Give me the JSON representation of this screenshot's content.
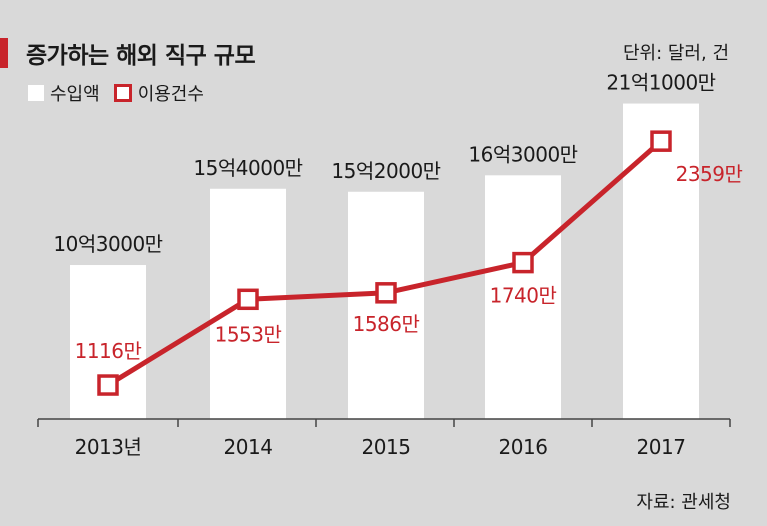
{
  "header": {
    "title": "증가하는 해외 직구 규모",
    "unit": "단위: 달러, 건"
  },
  "legend": {
    "amount_label": "수입액",
    "count_label": "이용건수"
  },
  "source": "자료: 관세청",
  "colors": {
    "accent": "#c8242b",
    "bar": "#ffffff",
    "background": "#d9d9d9"
  },
  "chart_data": {
    "type": "bar",
    "categories": [
      "2013년",
      "2014",
      "2015",
      "2016",
      "2017"
    ],
    "series": [
      {
        "name": "수입액",
        "type": "bar",
        "values": [
          1030000000,
          1540000000,
          1520000000,
          1630000000,
          2110000000
        ],
        "labels": [
          "10억3000만",
          "15억4000만",
          "15억2000만",
          "16억3000만",
          "21억1000만"
        ]
      },
      {
        "name": "이용건수",
        "type": "line",
        "values": [
          11160000,
          15530000,
          15860000,
          17400000,
          23590000
        ],
        "labels": [
          "1116만",
          "1553만",
          "1586만",
          "1740만",
          "2359만"
        ]
      }
    ]
  }
}
